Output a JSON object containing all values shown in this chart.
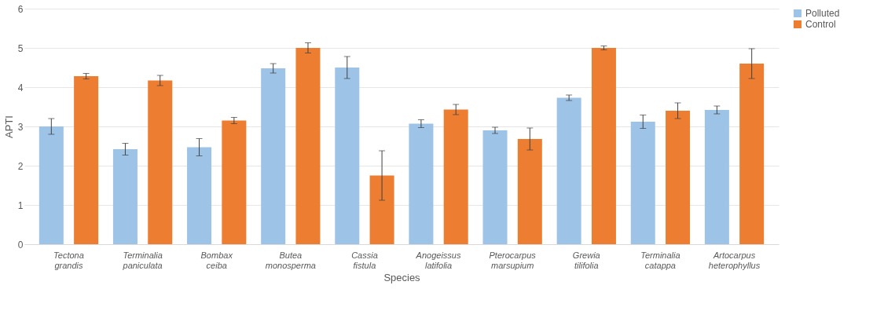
{
  "chart_data": {
    "type": "bar",
    "xlabel": "Species",
    "ylabel": "APTI",
    "categories": [
      "Tectona grandis",
      "Terminalia paniculata",
      "Bombax ceiba",
      "Butea monosperma",
      "Cassia fistula",
      "Anogeissus latifolia",
      "Pterocarpus marsupium",
      "Grewia tilifolia",
      "Terminalia catappa",
      "Artocarpus heterophyllus"
    ],
    "series": [
      {
        "name": "Polluted",
        "color": "#9dc3e6",
        "values": [
          3.0,
          2.42,
          2.47,
          4.48,
          4.5,
          3.07,
          2.9,
          3.73,
          3.12,
          3.42
        ],
        "errors": [
          0.2,
          0.15,
          0.22,
          0.12,
          0.28,
          0.1,
          0.08,
          0.07,
          0.17,
          0.1
        ]
      },
      {
        "name": "Control",
        "color": "#ed7d31",
        "values": [
          4.28,
          4.17,
          3.15,
          5.0,
          1.75,
          3.43,
          2.68,
          5.0,
          3.4,
          4.6
        ],
        "errors": [
          0.07,
          0.13,
          0.08,
          0.13,
          0.63,
          0.13,
          0.28,
          0.05,
          0.2,
          0.38
        ]
      }
    ],
    "ylim": [
      0,
      6
    ],
    "yticks": [
      0,
      1,
      2,
      3,
      4,
      5,
      6
    ],
    "grid": "y",
    "legend": "right"
  }
}
